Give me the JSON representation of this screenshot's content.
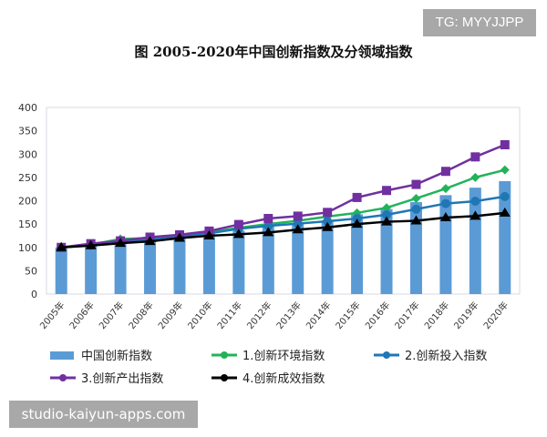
{
  "badge": "TG: MYYJJPP",
  "watermark": "studio-kaiyun-apps.com",
  "chart_data": {
    "type": "bar+line",
    "title": "图  2005-2020年中国创新指数及分领域指数",
    "categories": [
      "2005年",
      "2006年",
      "2007年",
      "2008年",
      "2009年",
      "2010年",
      "2011年",
      "2012年",
      "2013年",
      "2014年",
      "2015年",
      "2016年",
      "2017年",
      "2018年",
      "2019年",
      "2020年"
    ],
    "ylim": [
      0,
      400
    ],
    "yticks": [
      "0",
      "50",
      "100",
      "150",
      "200",
      "250",
      "300",
      "350",
      "400"
    ],
    "grid": false,
    "legend": "bottom",
    "series": [
      {
        "name": "中国创新指数",
        "type": "bar",
        "color": "#5b9bd5",
        "marker": "none",
        "values": [
          100,
          106,
          113,
          117,
          124,
          131,
          136,
          145,
          152,
          158,
          171,
          182,
          197,
          212,
          228,
          242
        ]
      },
      {
        "name": "1.创新环境指数",
        "type": "line",
        "color": "#22b35a",
        "marker": "diamond",
        "values": [
          100,
          106,
          118,
          120,
          126,
          132,
          142,
          150,
          157,
          166,
          174,
          185,
          205,
          226,
          250,
          266
        ]
      },
      {
        "name": "2.创新投入指数",
        "type": "line",
        "color": "#1f77b4",
        "marker": "circle",
        "values": [
          100,
          105,
          112,
          118,
          124,
          130,
          140,
          146,
          151,
          156,
          162,
          170,
          182,
          194,
          199,
          209
        ]
      },
      {
        "name": "3.创新产出指数",
        "type": "line",
        "color": "#7030a0",
        "marker": "square",
        "values": [
          100,
          108,
          114,
          122,
          127,
          135,
          149,
          162,
          167,
          175,
          207,
          222,
          235,
          263,
          294,
          320
        ]
      },
      {
        "name": "4.创新成效指数",
        "type": "line",
        "color": "#000000",
        "marker": "triangle",
        "values": [
          100,
          104,
          109,
          113,
          120,
          125,
          128,
          132,
          138,
          143,
          150,
          155,
          157,
          164,
          167,
          174
        ]
      }
    ]
  }
}
